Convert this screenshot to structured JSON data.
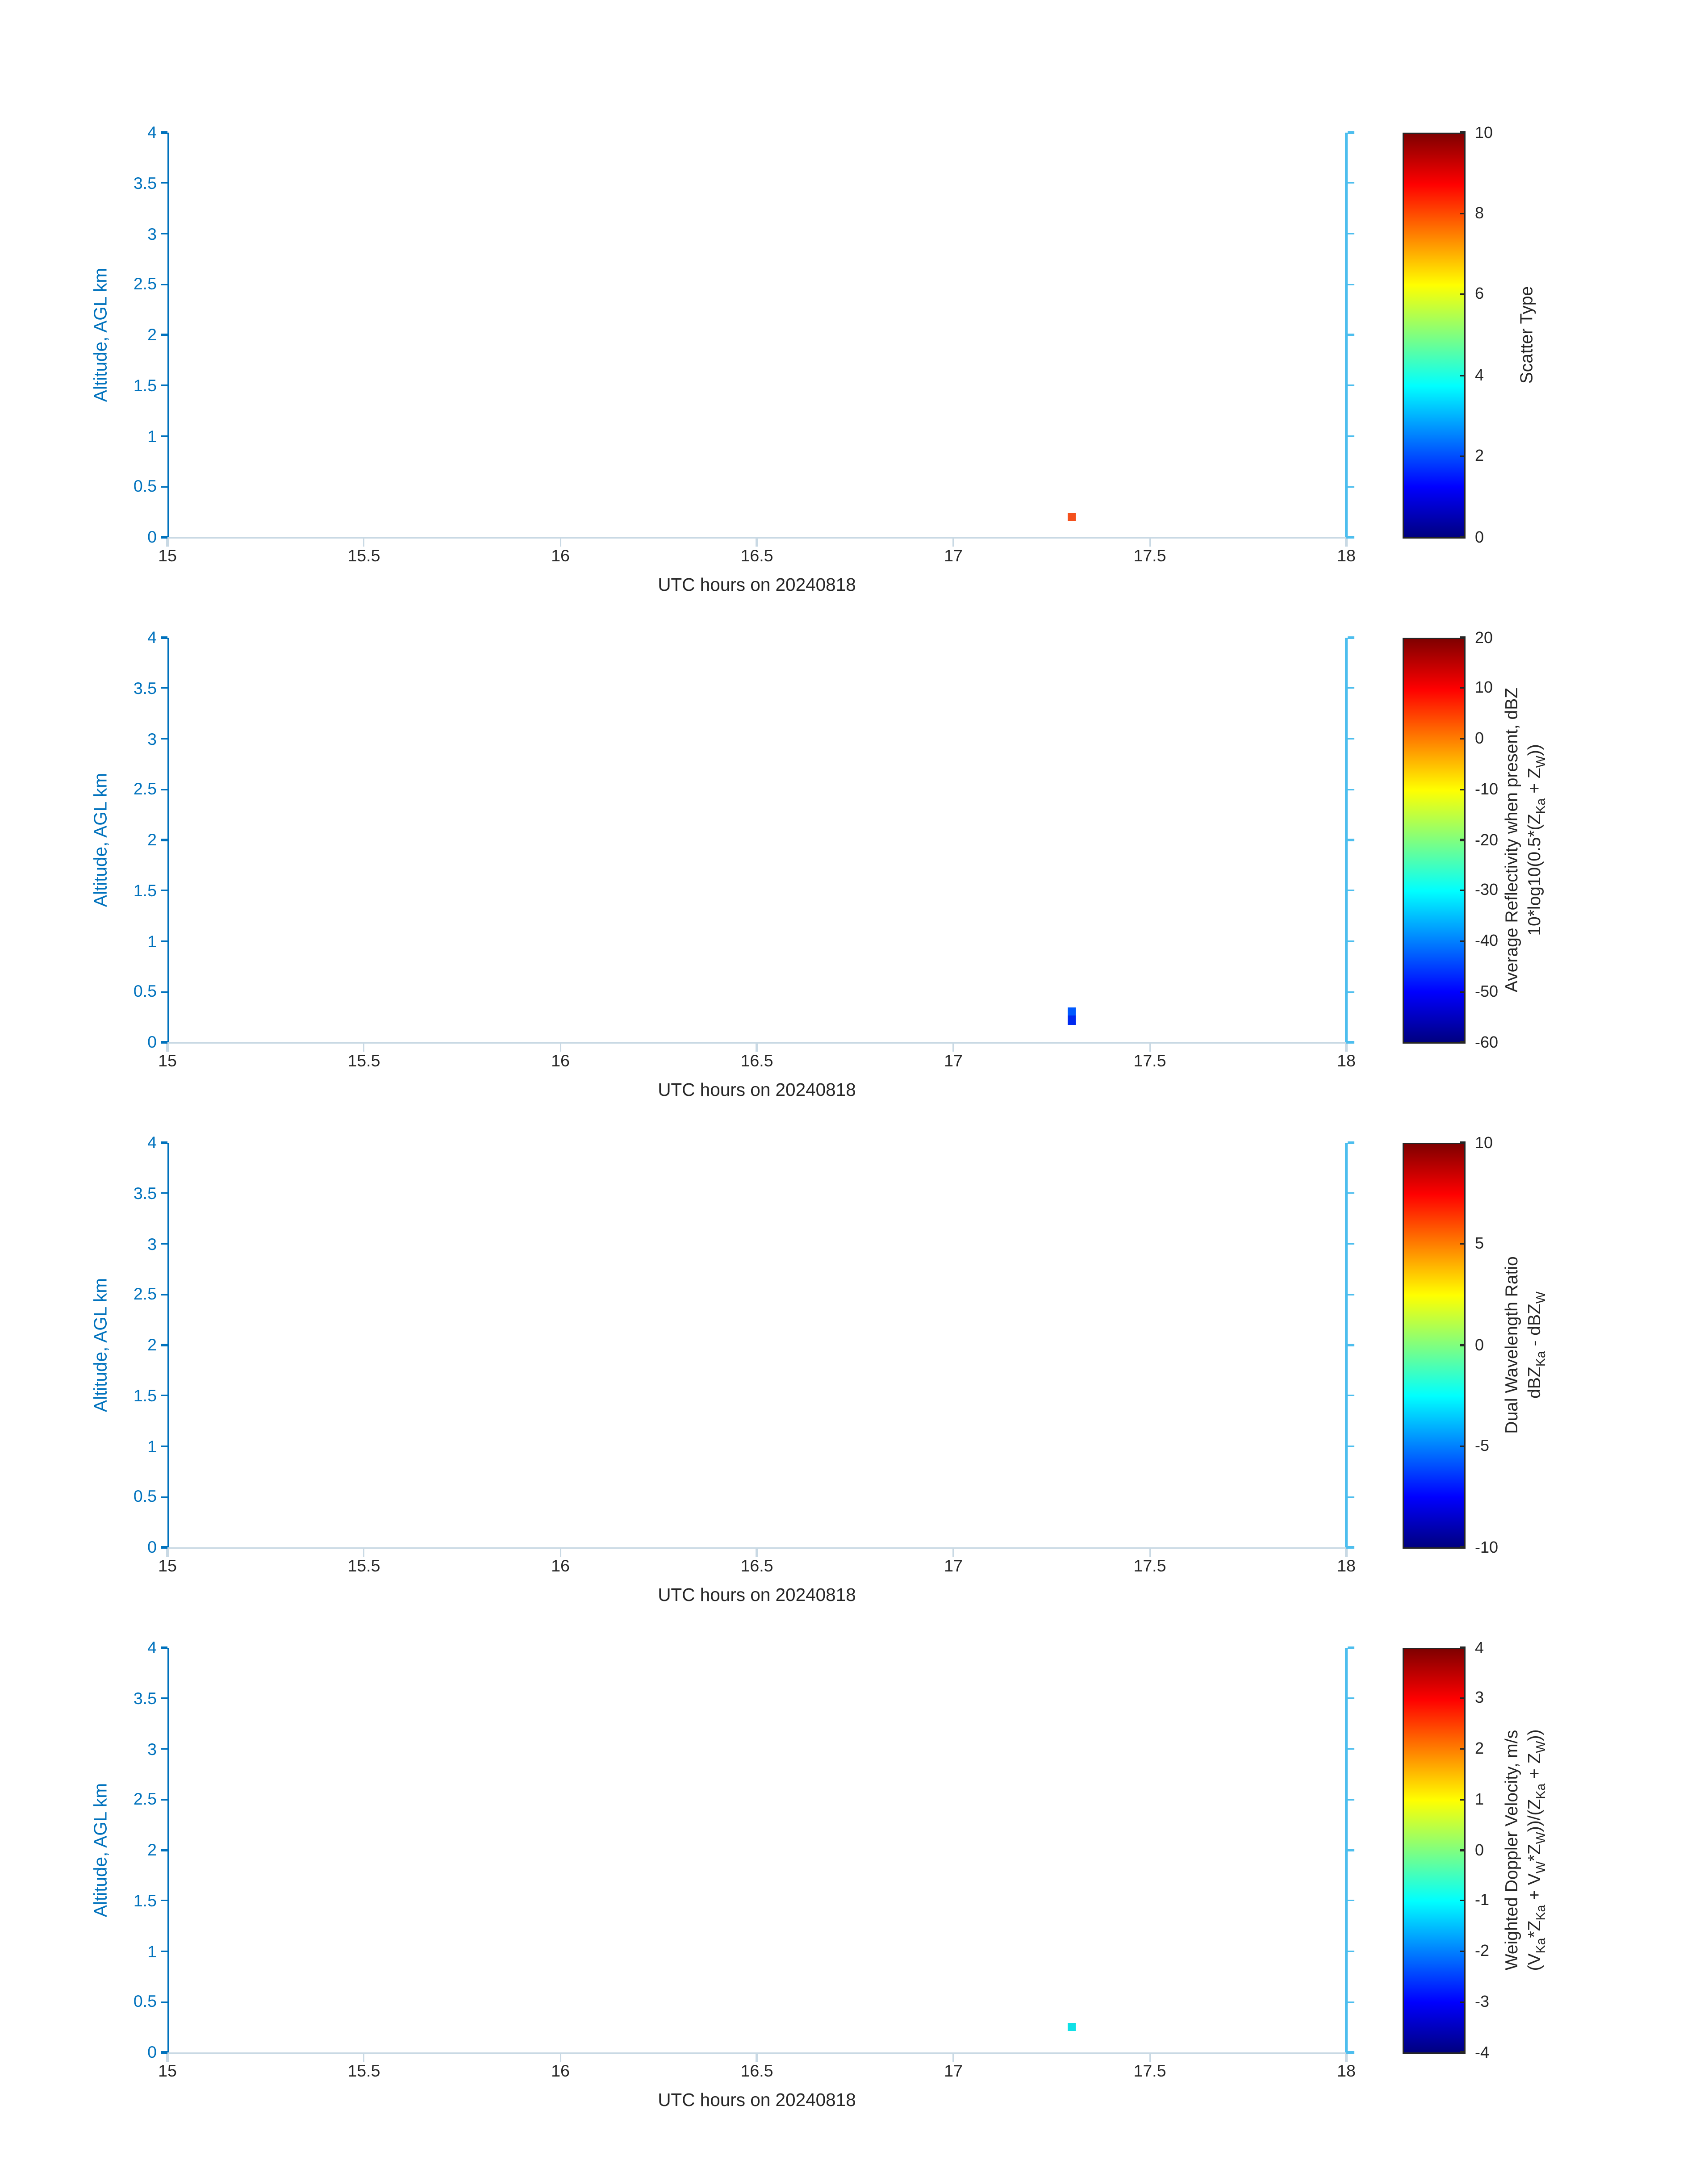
{
  "figure": {
    "background": "#ffffff",
    "axis_left_color": "#0072BD",
    "axis_right_color": "#4DBEEE",
    "axis_x_color": "#c9d9e4",
    "tick_label_color": "#262626",
    "colormap": "jet"
  },
  "chart_data": [
    {
      "type": "heatmap",
      "title": "",
      "xlabel": "UTC hours on 20240818",
      "ylabel": "Altitude, AGL km",
      "xlim": [
        15,
        18
      ],
      "ylim": [
        0,
        4
      ],
      "x_ticks": [
        15,
        15.5,
        16,
        16.5,
        17,
        17.5,
        18
      ],
      "y_ticks": [
        0,
        0.5,
        1,
        1.5,
        2,
        2.5,
        3,
        3.5,
        4
      ],
      "grid": false,
      "colorbar": {
        "min": 0,
        "max": 10,
        "ticks": [
          0,
          2,
          4,
          6,
          8,
          10
        ],
        "colormap": "jet",
        "label_lines": [
          [
            "Scatter Type"
          ]
        ]
      },
      "points": [
        {
          "x": 17.3,
          "y": 0.2,
          "value": 8,
          "color": "#f4501c"
        }
      ]
    },
    {
      "type": "heatmap",
      "title": "",
      "xlabel": "UTC hours on 20240818",
      "ylabel": "Altitude, AGL km",
      "xlim": [
        15,
        18
      ],
      "ylim": [
        0,
        4
      ],
      "x_ticks": [
        15,
        15.5,
        16,
        16.5,
        17,
        17.5,
        18
      ],
      "y_ticks": [
        0,
        0.5,
        1,
        1.5,
        2,
        2.5,
        3,
        3.5,
        4
      ],
      "grid": false,
      "colorbar": {
        "min": -60,
        "max": 20,
        "ticks": [
          -60,
          -50,
          -40,
          -30,
          -20,
          -10,
          0,
          10,
          20
        ],
        "colormap": "jet",
        "label_lines": [
          [
            "Average Reflectivity when present, dBZ"
          ],
          [
            "10*log10(0.5*(Z",
            "Ka",
            " + Z",
            "W",
            "))"
          ]
        ]
      },
      "points": [
        {
          "x": 17.3,
          "y": 0.3,
          "value": -42,
          "color": "#0059ff"
        },
        {
          "x": 17.3,
          "y": 0.22,
          "value": -47,
          "color": "#0029f0"
        }
      ]
    },
    {
      "type": "heatmap",
      "title": "",
      "xlabel": "UTC hours on 20240818",
      "ylabel": "Altitude, AGL km",
      "xlim": [
        15,
        18
      ],
      "ylim": [
        0,
        4
      ],
      "x_ticks": [
        15,
        15.5,
        16,
        16.5,
        17,
        17.5,
        18
      ],
      "y_ticks": [
        0,
        0.5,
        1,
        1.5,
        2,
        2.5,
        3,
        3.5,
        4
      ],
      "grid": false,
      "colorbar": {
        "min": -10,
        "max": 10,
        "ticks": [
          -10,
          -5,
          0,
          5,
          10
        ],
        "colormap": "jet",
        "label_lines": [
          [
            "Dual Wavelength Ratio"
          ],
          [
            "dBZ",
            "Ka",
            " - dBZ",
            "W"
          ]
        ]
      },
      "points": []
    },
    {
      "type": "heatmap",
      "title": "",
      "xlabel": "UTC hours on 20240818",
      "ylabel": "Altitude, AGL km",
      "xlim": [
        15,
        18
      ],
      "ylim": [
        0,
        4
      ],
      "x_ticks": [
        15,
        15.5,
        16,
        16.5,
        17,
        17.5,
        18
      ],
      "y_ticks": [
        0,
        0.5,
        1,
        1.5,
        2,
        2.5,
        3,
        3.5,
        4
      ],
      "grid": false,
      "colorbar": {
        "min": -4,
        "max": 4,
        "ticks": [
          -4,
          -3,
          -2,
          -1,
          0,
          1,
          2,
          3,
          4
        ],
        "colormap": "jet",
        "label_lines": [
          [
            "Weighted Doppler Velocity, m/s"
          ],
          [
            "(V",
            "Ka",
            "*Z",
            "Ka",
            " + V",
            "W",
            "*Z",
            "W",
            "))/(Z",
            "Ka",
            " + Z",
            "W",
            "))"
          ]
        ]
      },
      "points": [
        {
          "x": 17.3,
          "y": 0.25,
          "value": -1,
          "color": "#0fe0e6"
        }
      ]
    }
  ]
}
